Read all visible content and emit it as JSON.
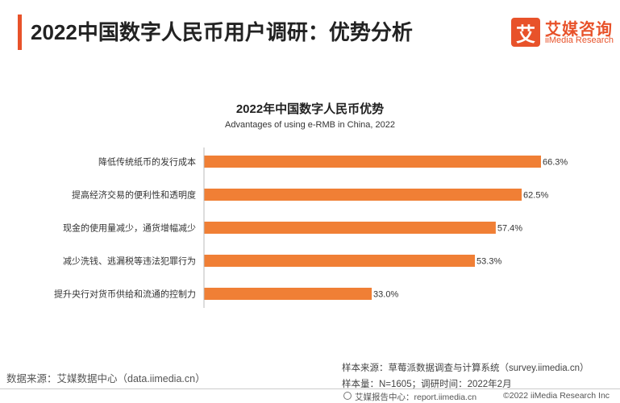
{
  "header": {
    "title": "2022中国数字人民币用户调研：优势分析",
    "logo_cn": "艾媒咨询",
    "logo_en": "iiMedia Research",
    "logo_glyph": "艾",
    "accent_color": "#e8522a"
  },
  "chart_data": {
    "type": "bar",
    "orientation": "horizontal",
    "title": "2022年中国数字人民币优势",
    "subtitle": "Advantages of using e-RMB in China, 2022",
    "categories": [
      "降低传统纸币的发行成本",
      "提高经济交易的便利性和透明度",
      "现金的使用量减少，通货增幅减少",
      "减少洗钱、逃漏税等违法犯罪行为",
      "提升央行对货币供给和流通的控制力"
    ],
    "values": [
      66.3,
      62.5,
      57.4,
      53.3,
      33.0
    ],
    "value_labels": [
      "66.3%",
      "62.5%",
      "57.4%",
      "53.3%",
      "33.0%"
    ],
    "unit": "%",
    "bar_color": "#f07f35",
    "xlim": [
      0,
      66.3
    ],
    "grid": false
  },
  "footer": {
    "data_source": "数据来源：艾媒数据中心（data.iimedia.cn）",
    "sample_source": "样本来源：草莓派数据调查与计算系统（survey.iimedia.cn）",
    "sample_size": "样本量：N=1605；调研时间：2022年2月",
    "report_site": "艾媒报告中心：report.iimedia.cn",
    "copyright": "©2022  iiMedia Research Inc"
  }
}
